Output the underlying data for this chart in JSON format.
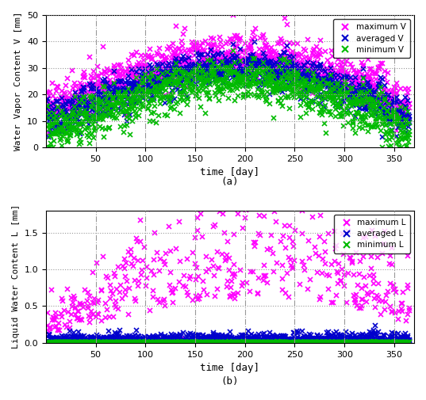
{
  "seed": 1994,
  "title_a": "(a)",
  "title_b": "(b)",
  "xlabel": "time [day]",
  "ylabel_a": "Water Vapor Content V [mm]",
  "ylabel_b": "Liquid Water Content L [mm]",
  "xlim": [
    0,
    370
  ],
  "xticks": [
    50,
    100,
    150,
    200,
    250,
    300,
    350
  ],
  "ylim_a": [
    0,
    50
  ],
  "yticks_a": [
    0,
    10,
    20,
    30,
    40,
    50
  ],
  "ylim_b": [
    0,
    1.8
  ],
  "yticks_b": [
    0,
    0.5,
    1.0,
    1.5
  ],
  "color_max": "#FF00FF",
  "color_avg": "#0000CC",
  "color_min": "#00BB00",
  "legend_a": [
    "maximum V",
    "averaged V",
    "minimum V"
  ],
  "legend_b": [
    "maximum L",
    "averaged L",
    "minimum L"
  ],
  "marker": "x",
  "markersize": 4,
  "markeredgewidth": 1.2,
  "bg_color": "#FFFFFF",
  "grid_color": "#999999",
  "vgrid_style": "-.",
  "hgrid_style": ":"
}
